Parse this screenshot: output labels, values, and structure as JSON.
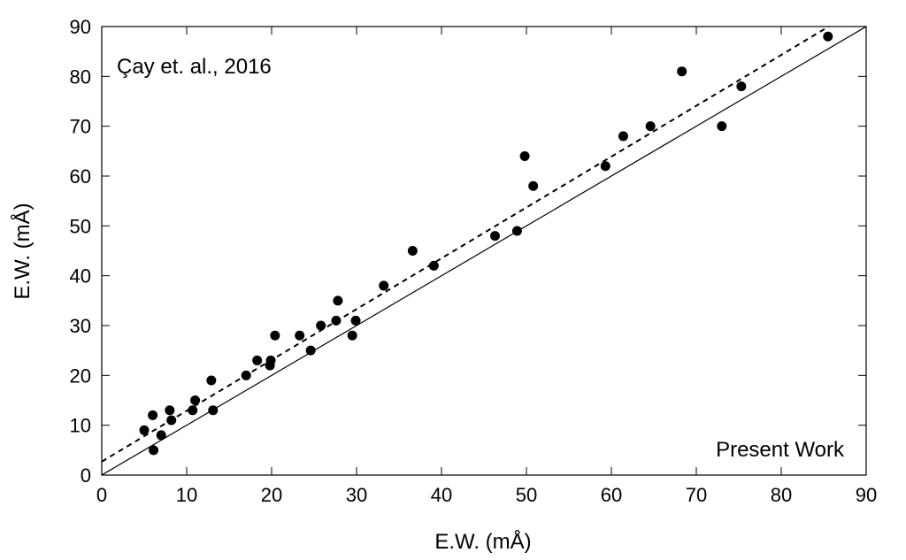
{
  "chart_data": {
    "type": "scatter",
    "xlabel": "E.W. (mÅ)",
    "ylabel": "E.W. (mÅ)",
    "xlim": [
      0,
      90
    ],
    "ylim": [
      0,
      90
    ],
    "xticks": [
      0,
      10,
      20,
      30,
      40,
      50,
      60,
      70,
      80,
      90
    ],
    "yticks": [
      0,
      10,
      20,
      30,
      40,
      50,
      60,
      70,
      80,
      90
    ],
    "grid": false,
    "annotations": {
      "top_left": "Çay et. al., 2016",
      "bottom_right": "Present Work"
    },
    "points": [
      [
        5.0,
        9
      ],
      [
        6.0,
        12
      ],
      [
        6.1,
        5
      ],
      [
        7.0,
        8
      ],
      [
        8.0,
        13
      ],
      [
        8.2,
        11
      ],
      [
        10.7,
        13
      ],
      [
        11.0,
        15
      ],
      [
        12.9,
        19
      ],
      [
        13.1,
        13
      ],
      [
        17.0,
        20
      ],
      [
        18.3,
        23
      ],
      [
        19.8,
        22
      ],
      [
        19.9,
        23
      ],
      [
        20.4,
        28
      ],
      [
        23.3,
        28
      ],
      [
        24.6,
        25
      ],
      [
        25.8,
        30
      ],
      [
        27.6,
        31
      ],
      [
        27.8,
        35
      ],
      [
        29.5,
        28
      ],
      [
        29.9,
        31
      ],
      [
        33.2,
        38
      ],
      [
        36.6,
        45
      ],
      [
        39.1,
        42
      ],
      [
        46.3,
        48
      ],
      [
        48.9,
        49
      ],
      [
        49.8,
        64
      ],
      [
        50.8,
        58
      ],
      [
        59.3,
        62
      ],
      [
        61.4,
        68
      ],
      [
        64.6,
        70
      ],
      [
        68.3,
        81
      ],
      [
        73.0,
        70
      ],
      [
        75.3,
        78
      ],
      [
        85.5,
        88
      ]
    ],
    "lines": [
      {
        "style": "solid",
        "slope": 1.0,
        "intercept": 0.0
      },
      {
        "style": "dashed",
        "slope": 1.02,
        "intercept": 2.7
      }
    ]
  }
}
